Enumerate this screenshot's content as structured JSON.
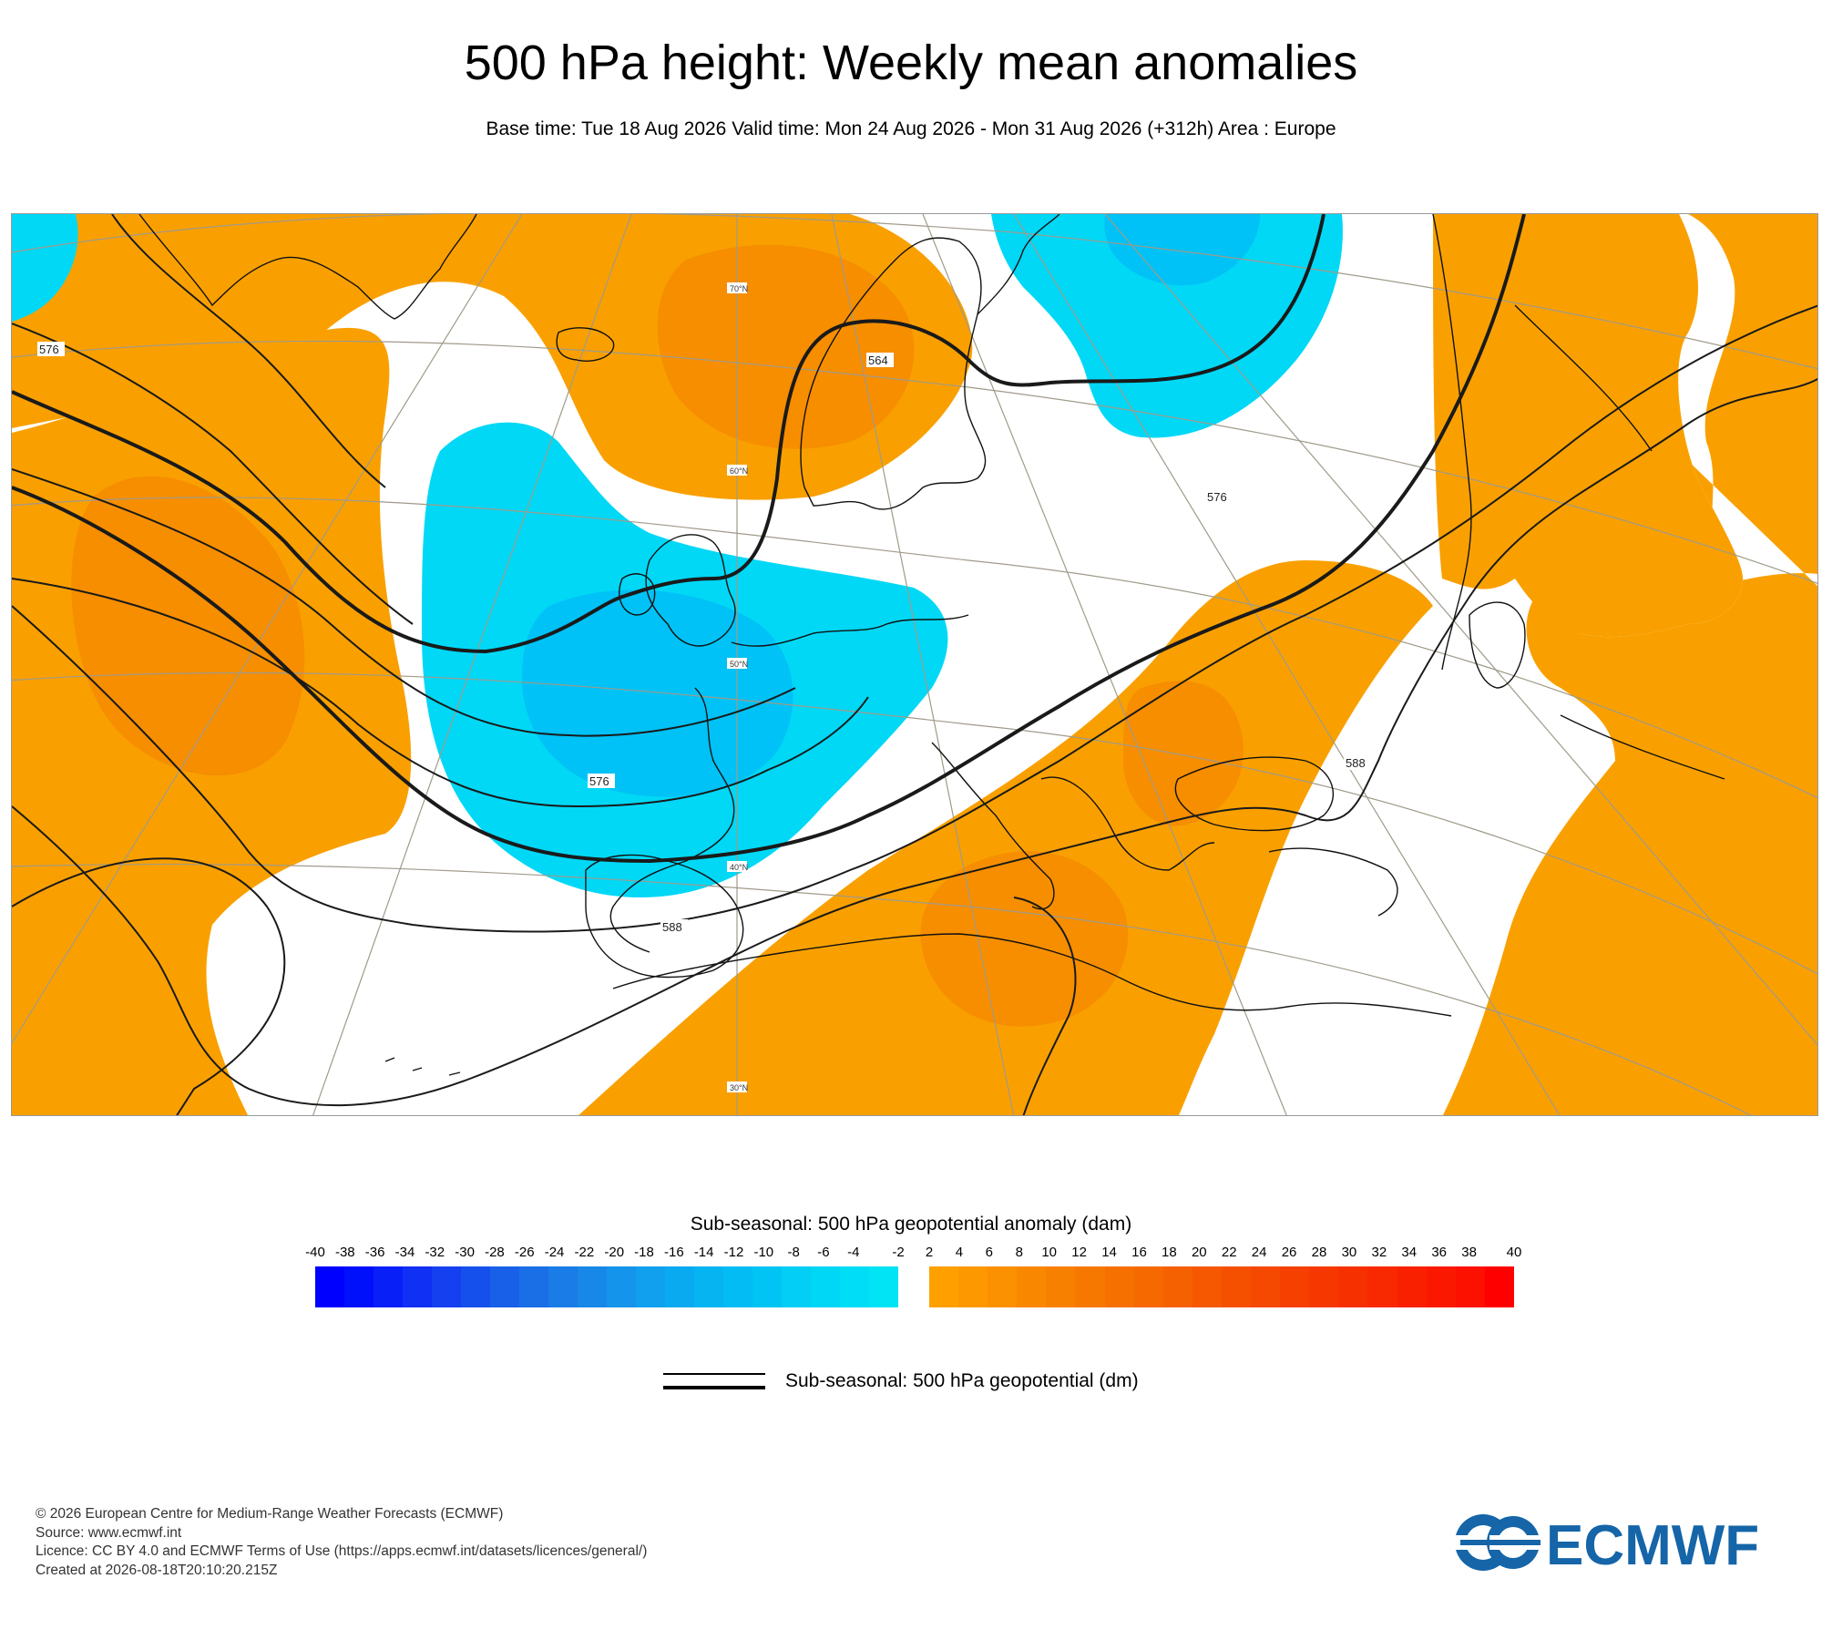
{
  "title": "500 hPa height: Weekly mean anomalies",
  "subtitle": "Base time: Tue 18 Aug 2026 Valid time: Mon 24 Aug 2026 - Mon 31 Aug 2026 (+312h) Area : Europe",
  "map": {
    "area": "Europe",
    "latitude_labels": [
      "70°N",
      "60°N",
      "50°N",
      "40°N",
      "30°N"
    ],
    "contour_labels": [
      "564",
      "576",
      "576",
      "576",
      "588",
      "588"
    ],
    "colors": {
      "positive_anomaly": "#f9a000",
      "positive_anomaly_strong": "#f68e00",
      "negative_anomaly": "#00d8f6",
      "negative_anomaly_strong": "#00c2f6",
      "coastline": "#000000",
      "graticule": "#a09a8a"
    }
  },
  "colorbar": {
    "title": "Sub-seasonal: 500 hPa geopotential anomaly (dam)",
    "ticks": [
      "-40",
      "-38",
      "-36",
      "-34",
      "-32",
      "-30",
      "-28",
      "-26",
      "-24",
      "-22",
      "-20",
      "-18",
      "-16",
      "-14",
      "-12",
      "-10",
      "-8",
      "-6",
      "-4",
      "-2",
      "2",
      "4",
      "6",
      "8",
      "10",
      "12",
      "14",
      "16",
      "18",
      "20",
      "22",
      "24",
      "26",
      "28",
      "30",
      "32",
      "34",
      "36",
      "38",
      "40"
    ],
    "negative_colors": [
      "#0000ff",
      "#0010fb",
      "#0820f7",
      "#1030f3",
      "#1440f0",
      "#1650ec",
      "#1860e8",
      "#1a6ee6",
      "#1a7ce6",
      "#1888e8",
      "#1494ea",
      "#10a0ee",
      "#0aaaf0",
      "#06b4f2",
      "#04bcf4",
      "#02c4f4",
      "#02cef6",
      "#00d6f6",
      "#00ddf6",
      "#00e4f6"
    ],
    "positive_colors": [
      "#ffa000",
      "#fd9800",
      "#fb9000",
      "#f98800",
      "#f88000",
      "#f77800",
      "#f67000",
      "#f66800",
      "#f56000",
      "#f55800",
      "#f55000",
      "#f54800",
      "#f54000",
      "#f63800",
      "#f73000",
      "#f82800",
      "#f92000",
      "#fb1800",
      "#fc1000",
      "#ff0000"
    ]
  },
  "legend": {
    "line_label": "Sub-seasonal: 500 hPa geopotential (dm)"
  },
  "footer": {
    "line1": "© 2026 European Centre for Medium-Range Weather Forecasts (ECMWF)",
    "line2": "Source: www.ecmwf.int",
    "line3": "Licence: CC BY 4.0 and ECMWF Terms of Use (https://apps.ecmwf.int/datasets/licences/general/)",
    "line4": "Created at 2026-08-18T20:10:20.215Z"
  },
  "logo": {
    "text": "ECMWF",
    "color": "#1565a8"
  }
}
